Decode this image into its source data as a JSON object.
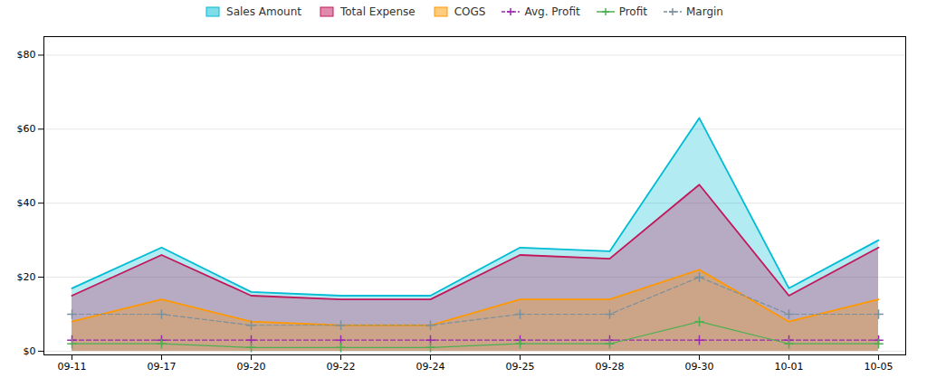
{
  "chart_data": {
    "type": "line",
    "categories": [
      "09-11",
      "09-17",
      "09-20",
      "09-22",
      "09-24",
      "09-25",
      "09-28",
      "09-30",
      "10-01",
      "10-05"
    ],
    "series": [
      {
        "name": "Sales Amount",
        "type": "area",
        "color": "#00bcd4",
        "values": [
          17,
          28,
          16,
          15,
          15,
          28,
          27,
          63,
          17,
          30
        ]
      },
      {
        "name": "Total Expense",
        "type": "area",
        "color": "#c2185b",
        "values": [
          15,
          26,
          15,
          14,
          14,
          26,
          25,
          45,
          15,
          28
        ]
      },
      {
        "name": "COGS",
        "type": "area",
        "color": "#ff9800",
        "values": [
          8,
          14,
          8,
          7,
          7,
          14,
          14,
          22,
          8,
          14
        ]
      },
      {
        "name": "Avg. Profit",
        "type": "line",
        "color": "#9c27b0",
        "line_style": "dashed",
        "marker": "plus",
        "values": [
          3,
          3,
          3,
          3,
          3,
          3,
          3,
          3,
          3,
          3
        ]
      },
      {
        "name": "Profit",
        "type": "line",
        "color": "#4caf50",
        "line_style": "solid",
        "marker": "plus",
        "values": [
          2,
          2,
          1,
          1,
          1,
          2,
          2,
          8,
          2,
          2
        ]
      },
      {
        "name": "Margin",
        "type": "line",
        "color": "#78909c",
        "line_style": "dashed",
        "marker": "plus",
        "values": [
          10,
          10,
          7,
          7,
          7,
          10,
          10,
          20,
          10,
          10
        ]
      }
    ],
    "ylim": [
      -1,
      85
    ],
    "yticks": [
      {
        "value": 0,
        "label": "$0"
      },
      {
        "value": 20,
        "label": "$20"
      },
      {
        "value": 40,
        "label": "$40"
      },
      {
        "value": 60,
        "label": "$60"
      },
      {
        "value": 80,
        "label": "$80"
      }
    ],
    "grid": true,
    "legend": "top"
  }
}
